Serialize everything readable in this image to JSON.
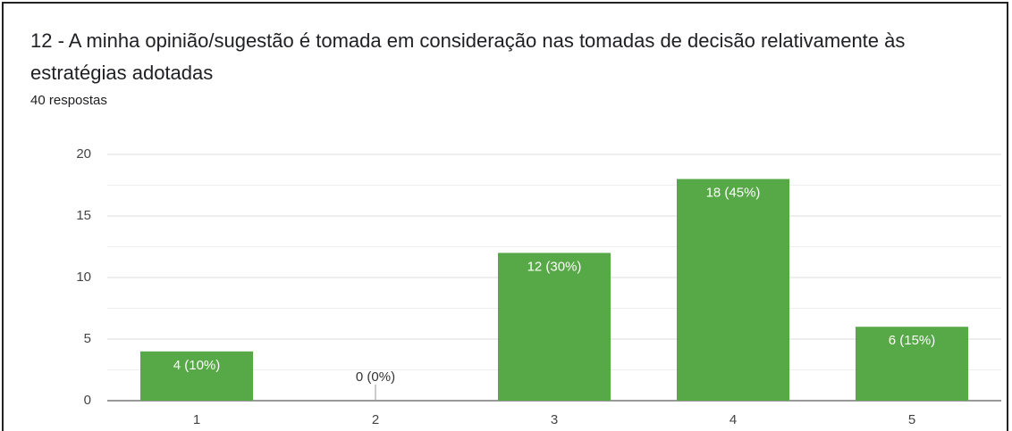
{
  "chart_data": {
    "type": "bar",
    "title": "12 - A minha opinião/sugestão é tomada em consideração nas tomadas de decisão relativamente às estratégias adotadas",
    "subtitle": "40 respostas",
    "categories": [
      "1",
      "2",
      "3",
      "4",
      "5"
    ],
    "values": [
      4,
      0,
      12,
      18,
      6
    ],
    "value_labels": [
      "4 (10%)",
      "0 (0%)",
      "12 (30%)",
      "18 (45%)",
      "6 (15%)"
    ],
    "color": "#57a846",
    "ylim": [
      0,
      20
    ],
    "yticks": [
      0,
      5,
      10,
      15,
      20
    ],
    "minor_yticks": [
      2.5,
      7.5,
      12.5,
      17.5
    ],
    "grid": true
  }
}
